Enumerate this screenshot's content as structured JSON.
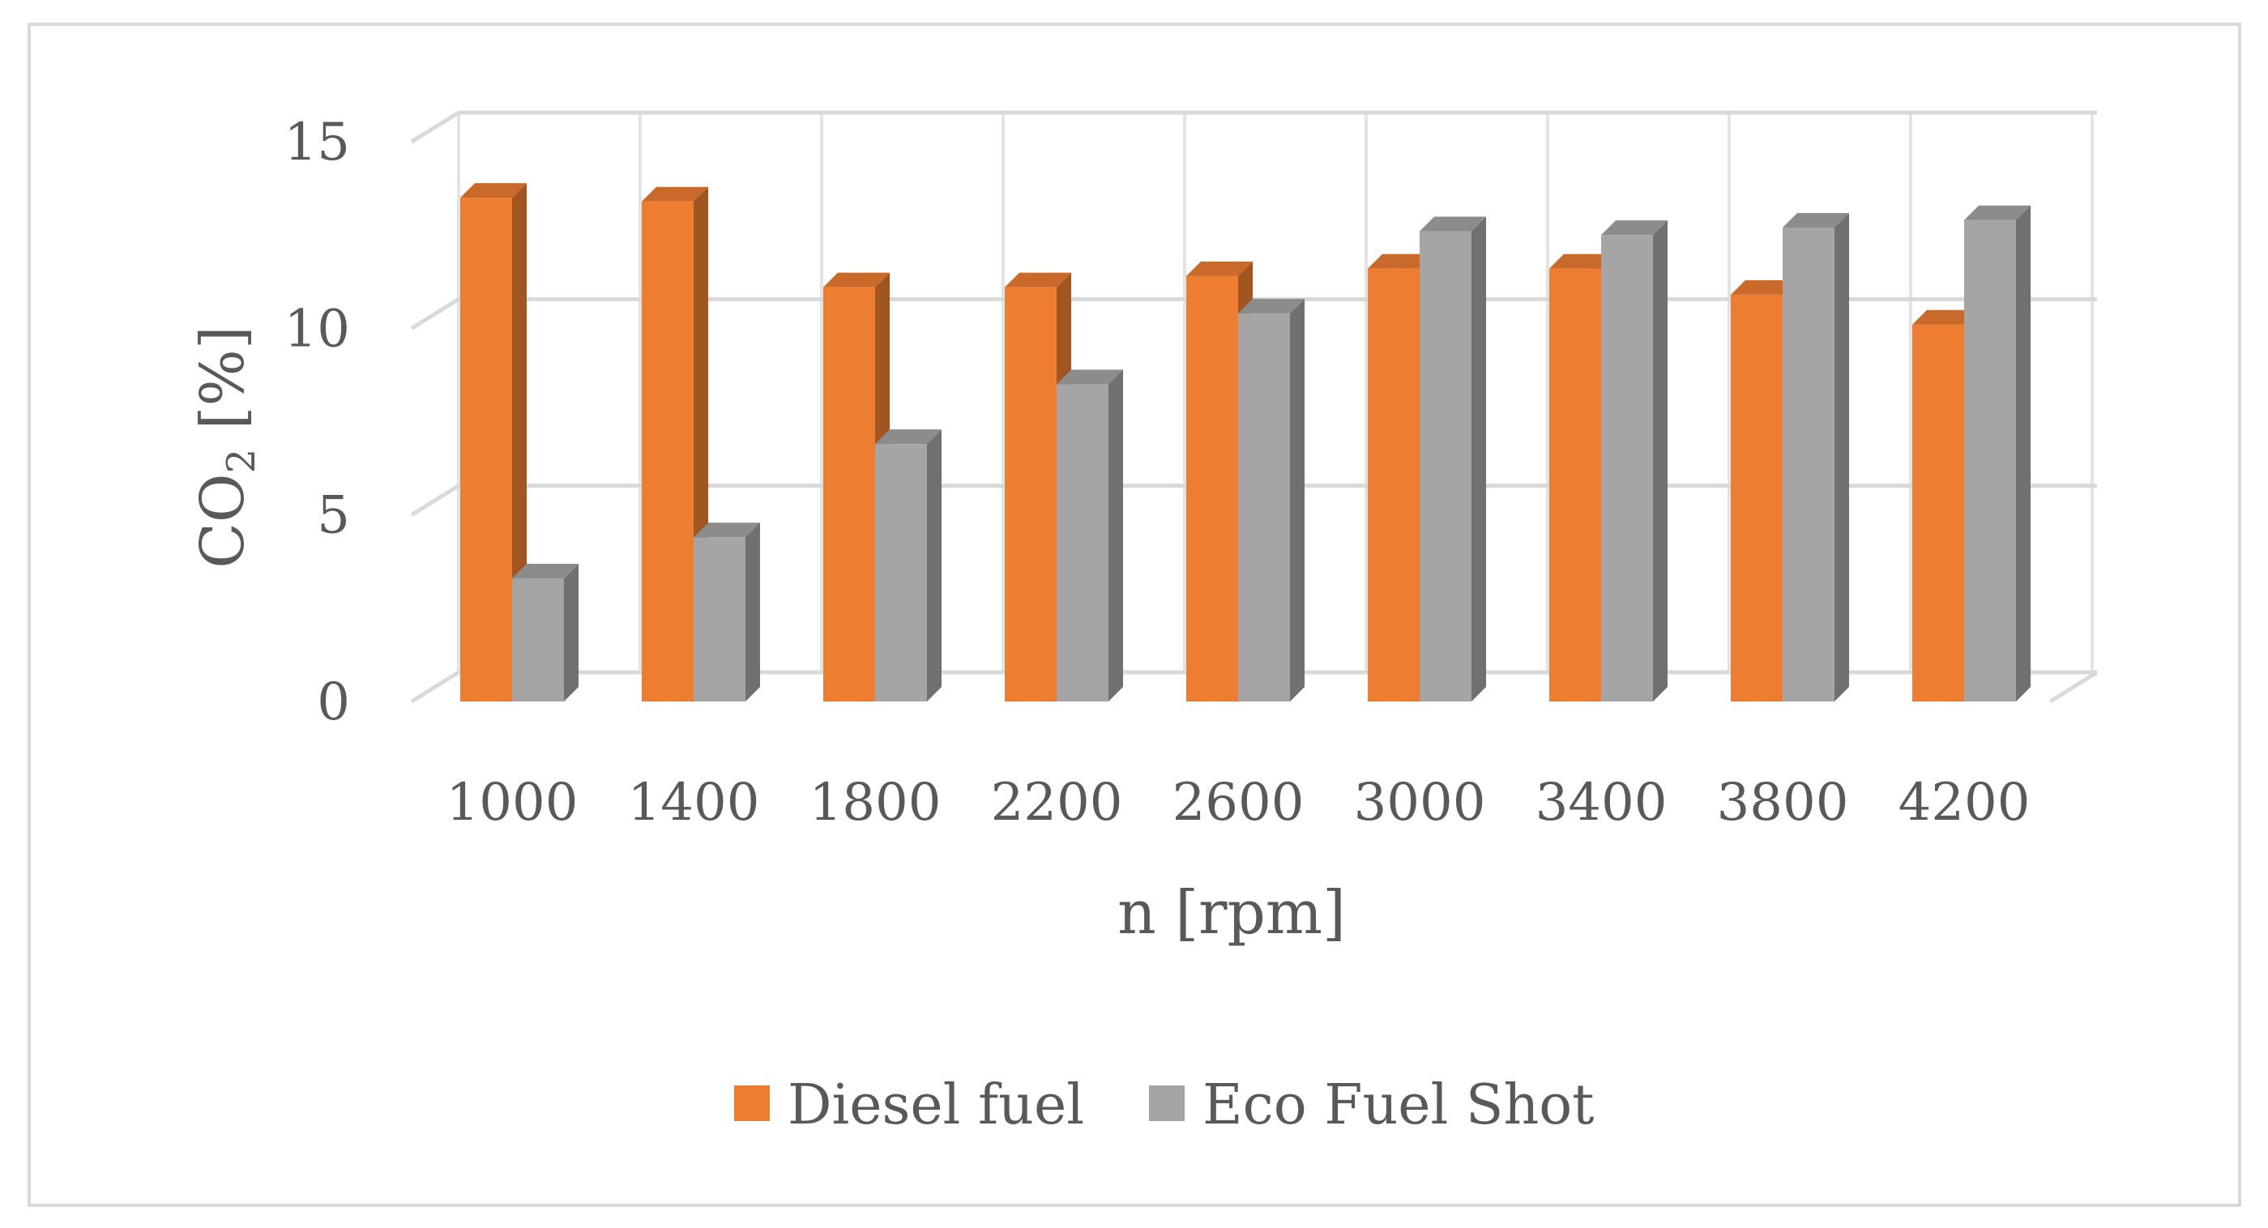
{
  "chart_data": {
    "type": "bar",
    "categories": [
      "1000",
      "1400",
      "1800",
      "2200",
      "2600",
      "3000",
      "3400",
      "3800",
      "4200"
    ],
    "series": [
      {
        "name": "Diesel fuel",
        "values": [
          13.5,
          13.4,
          11.1,
          11.1,
          11.4,
          11.6,
          11.6,
          10.9,
          10.1
        ],
        "color": "#ed7d31"
      },
      {
        "name": "Eco Fuel Shot",
        "values": [
          3.3,
          4.4,
          6.9,
          8.5,
          10.4,
          12.6,
          12.5,
          12.7,
          12.9
        ],
        "color": "#a5a5a5"
      }
    ],
    "title": "",
    "xlabel": "n [rpm]",
    "ylabel_main": "CO",
    "ylabel_sub": "2",
    "ylabel_tail": " [%]",
    "ylim": [
      0,
      15
    ],
    "yticks": [
      "0",
      "5",
      "10",
      "15"
    ],
    "grid": true,
    "legend_position": "bottom"
  }
}
